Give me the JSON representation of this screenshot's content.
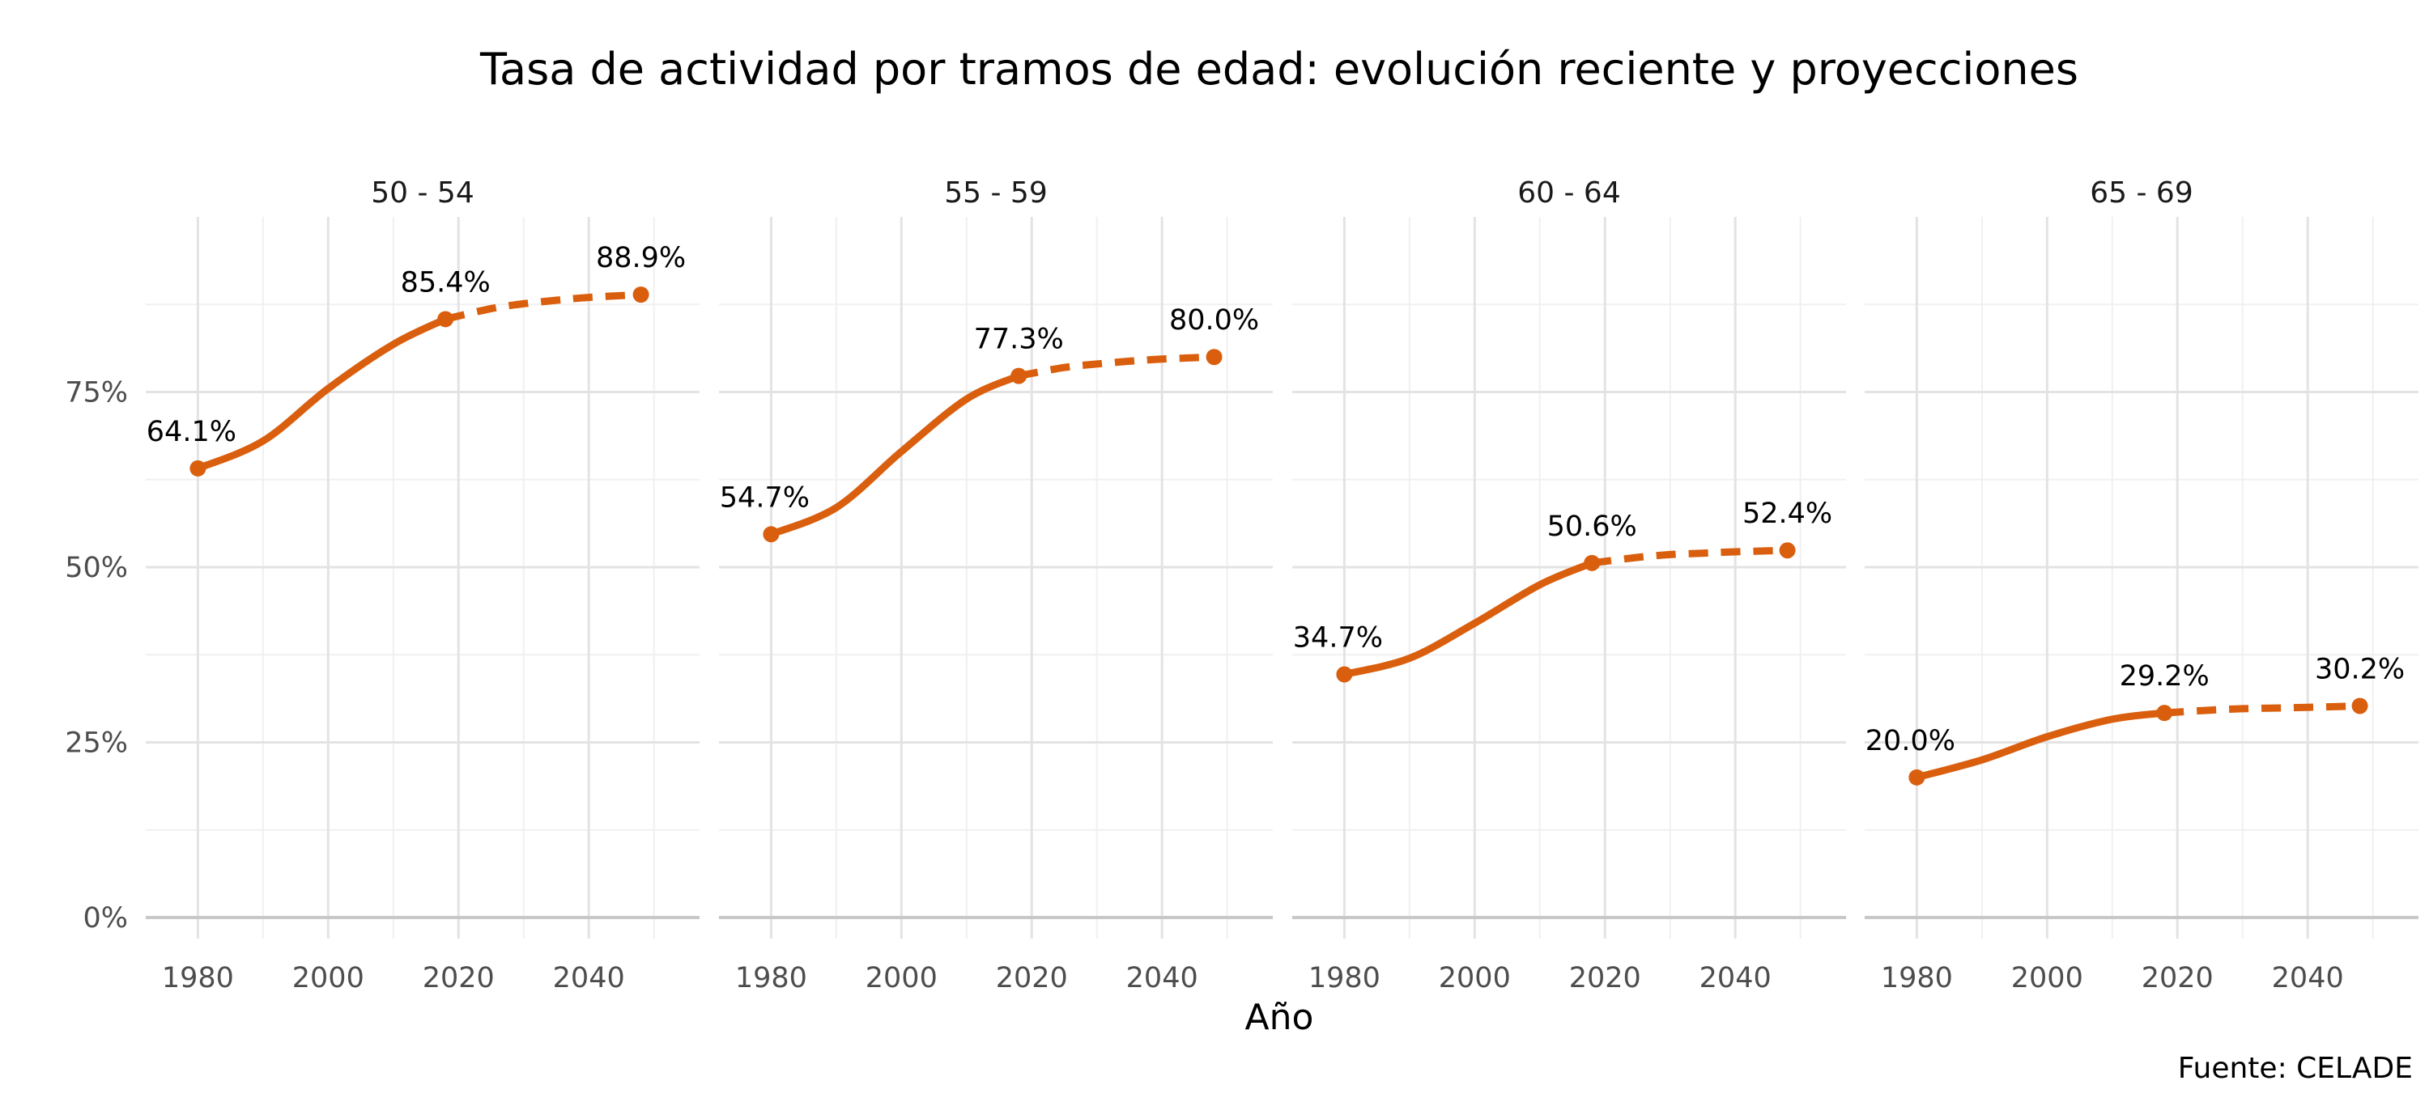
{
  "chart_data": {
    "type": "line",
    "title": "Tasa de actividad por tramos de edad: evolución reciente y proyecciones",
    "xlabel": "Año",
    "ylabel": "",
    "caption": "Fuente: CELADE",
    "color": "#D95F0E",
    "y_ticks": [
      "0%",
      "25%",
      "50%",
      "75%"
    ],
    "y_tick_values": [
      0,
      25,
      50,
      75
    ],
    "x_ticks": [
      "1980",
      "2000",
      "2020",
      "2040"
    ],
    "x_tick_values": [
      1980,
      2000,
      2020,
      2040
    ],
    "xlim": [
      1972,
      2057
    ],
    "ylim": [
      -3,
      100
    ],
    "grid": true,
    "legend": "none",
    "panels": [
      {
        "facet": "50 - 54",
        "observed": {
          "x": [
            1980,
            1990,
            2000,
            2010,
            2018
          ],
          "y": [
            64.1,
            68.0,
            75.5,
            81.8,
            85.4
          ]
        },
        "projected": {
          "x": [
            2018,
            2025,
            2030,
            2035,
            2040,
            2048
          ],
          "y": [
            85.4,
            86.9,
            87.6,
            88.1,
            88.5,
            88.9
          ]
        },
        "labels": [
          {
            "x": 1980,
            "y": 64.1,
            "text": "64.1%"
          },
          {
            "x": 2018,
            "y": 85.4,
            "text": "85.4%"
          },
          {
            "x": 2048,
            "y": 88.9,
            "text": "88.9%"
          }
        ]
      },
      {
        "facet": "55 - 59",
        "observed": {
          "x": [
            1980,
            1990,
            2000,
            2010,
            2018
          ],
          "y": [
            54.7,
            58.5,
            66.5,
            74.0,
            77.3
          ]
        },
        "projected": {
          "x": [
            2018,
            2025,
            2030,
            2035,
            2040,
            2048
          ],
          "y": [
            77.3,
            78.5,
            79.0,
            79.4,
            79.7,
            80.0
          ]
        },
        "labels": [
          {
            "x": 1980,
            "y": 54.7,
            "text": "54.7%"
          },
          {
            "x": 2018,
            "y": 77.3,
            "text": "77.3%"
          },
          {
            "x": 2048,
            "y": 80.0,
            "text": "80.0%"
          }
        ]
      },
      {
        "facet": "60 - 64",
        "observed": {
          "x": [
            1980,
            1990,
            2000,
            2010,
            2018
          ],
          "y": [
            34.7,
            37.0,
            42.0,
            47.5,
            50.6
          ]
        },
        "projected": {
          "x": [
            2018,
            2025,
            2030,
            2035,
            2040,
            2048
          ],
          "y": [
            50.6,
            51.4,
            51.8,
            52.0,
            52.2,
            52.4
          ]
        },
        "labels": [
          {
            "x": 1980,
            "y": 34.7,
            "text": "34.7%"
          },
          {
            "x": 2018,
            "y": 50.6,
            "text": "50.6%"
          },
          {
            "x": 2048,
            "y": 52.4,
            "text": "52.4%"
          }
        ]
      },
      {
        "facet": "65 - 69",
        "observed": {
          "x": [
            1980,
            1990,
            2000,
            2010,
            2018
          ],
          "y": [
            20.0,
            22.5,
            25.8,
            28.3,
            29.2
          ]
        },
        "projected": {
          "x": [
            2018,
            2025,
            2030,
            2035,
            2040,
            2048
          ],
          "y": [
            29.2,
            29.6,
            29.8,
            29.9,
            30.0,
            30.2
          ]
        },
        "labels": [
          {
            "x": 1980,
            "y": 20.0,
            "text": "20.0%"
          },
          {
            "x": 2018,
            "y": 29.2,
            "text": "29.2%"
          },
          {
            "x": 2048,
            "y": 30.2,
            "text": "30.2%"
          }
        ]
      }
    ]
  }
}
